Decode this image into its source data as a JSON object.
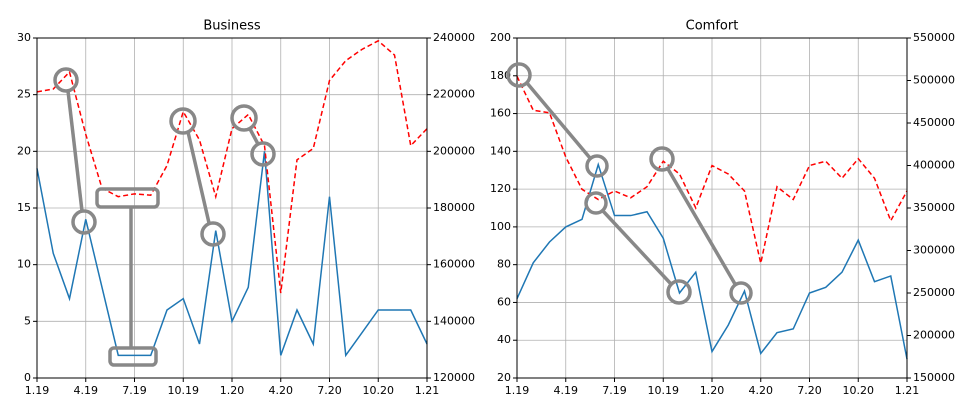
{
  "chart_data": [
    {
      "type": "line",
      "title": "Business",
      "categories": [
        "1.19",
        null,
        null,
        "4.19",
        null,
        null,
        "7.19",
        null,
        null,
        "10.19",
        null,
        null,
        "1.20",
        null,
        null,
        "4.20",
        null,
        null,
        "7.20",
        null,
        null,
        "10.20",
        null,
        null,
        "1.21"
      ],
      "series": [
        {
          "color": "#1f77b4",
          "dashed": false,
          "values": [
            18.5,
            11,
            7,
            14,
            8,
            2,
            2,
            2,
            6,
            7,
            3,
            13,
            5,
            8,
            20,
            2,
            6,
            3,
            16,
            2,
            4,
            6,
            6,
            6,
            3
          ]
        },
        {
          "color": "#ff0000",
          "dashed": true,
          "axis": "y2",
          "values": [
            221000,
            222000,
            228000,
            206000,
            187000,
            184000,
            185000,
            184500,
            195000,
            214000,
            204000,
            184000,
            208000,
            213000,
            202000,
            150000,
            197000,
            201000,
            225000,
            232000,
            236000,
            239000,
            234000,
            202000,
            208000
          ]
        }
      ],
      "ylim": [
        0,
        30
      ],
      "yticks": [
        0,
        5,
        10,
        15,
        20,
        25,
        30
      ],
      "y2lim": [
        120000,
        240000
      ],
      "y2ticks": [
        120000,
        140000,
        160000,
        180000,
        200000,
        220000,
        240000
      ],
      "grid": true
    },
    {
      "type": "line",
      "title": "Comfort",
      "categories": [
        "1.19",
        null,
        null,
        "4.19",
        null,
        null,
        "7.19",
        null,
        null,
        "10.19",
        null,
        null,
        "1.20",
        null,
        null,
        "4.20",
        null,
        null,
        "7.20",
        null,
        null,
        "10.20",
        null,
        null,
        "1.21"
      ],
      "series": [
        {
          "color": "#1f77b4",
          "dashed": false,
          "values": [
            62,
            81,
            92,
            100,
            104,
            133,
            106,
            106,
            108,
            94,
            65,
            76,
            34,
            48,
            66,
            33,
            44,
            46,
            65,
            68,
            76,
            93,
            71,
            74,
            30
          ]
        },
        {
          "color": "#ff0000",
          "dashed": true,
          "axis": "y2",
          "values": [
            505000,
            465000,
            462000,
            410000,
            372000,
            360000,
            370000,
            362000,
            375000,
            405000,
            390000,
            350000,
            400000,
            390000,
            370000,
            285000,
            375000,
            360000,
            400000,
            405000,
            385000,
            408000,
            385000,
            335000,
            370000
          ]
        }
      ],
      "ylim": [
        20,
        200
      ],
      "yticks": [
        20,
        40,
        60,
        80,
        100,
        120,
        140,
        160,
        180,
        200
      ],
      "y2lim": [
        150000,
        550000
      ],
      "y2ticks": [
        150000,
        200000,
        250000,
        300000,
        350000,
        400000,
        450000,
        500000,
        550000
      ],
      "grid": true
    }
  ]
}
